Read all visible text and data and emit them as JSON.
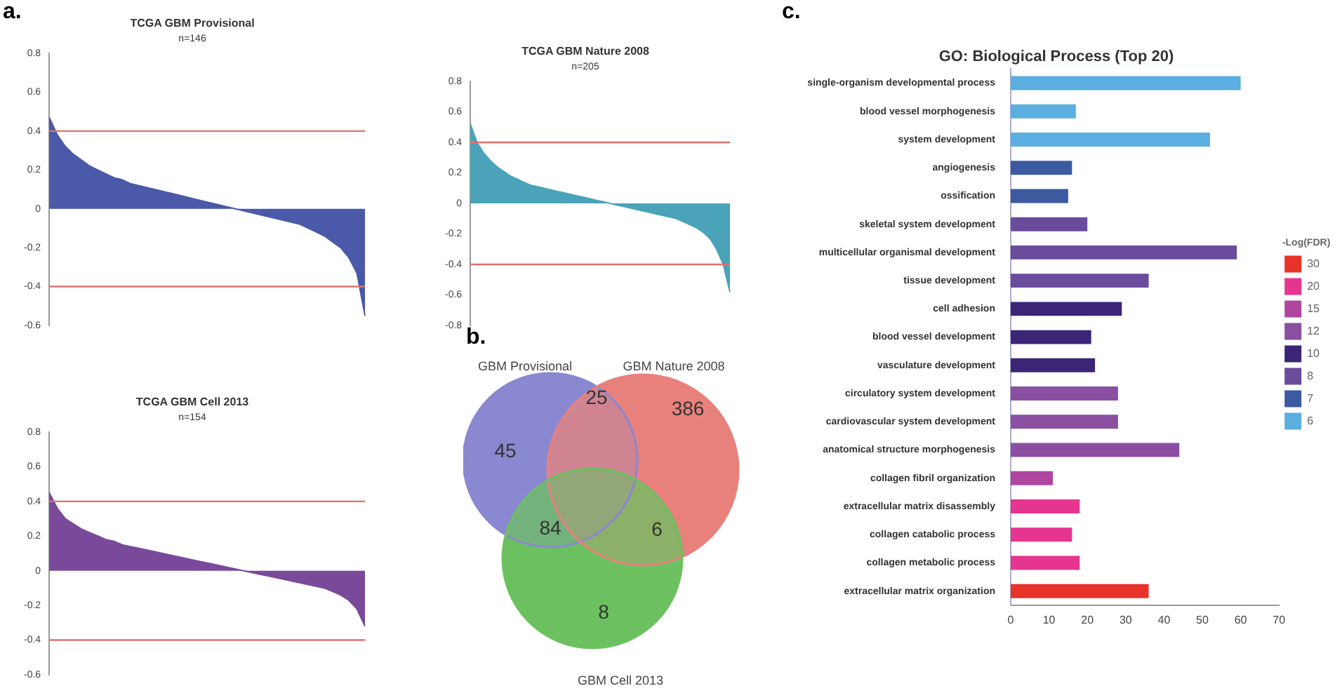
{
  "chart_data": [
    {
      "type": "area",
      "title": "TCGA GBM Provisional",
      "subtitle": "n=146",
      "annotations": [
        "a."
      ],
      "color": "#4a5aa8",
      "categories": [
        null,
        null,
        null,
        null,
        null,
        null,
        null,
        null,
        null,
        null,
        null,
        null,
        null,
        null,
        null,
        null,
        null,
        null,
        null,
        null,
        null,
        null,
        null,
        null,
        null,
        null,
        null,
        null,
        null,
        null,
        null,
        null,
        null,
        null,
        null,
        null,
        null,
        null,
        null,
        null
      ],
      "values": [
        0.47,
        0.38,
        0.32,
        0.28,
        0.25,
        0.22,
        0.2,
        0.18,
        0.16,
        0.15,
        0.13,
        0.12,
        0.11,
        0.1,
        0.09,
        0.08,
        0.07,
        0.06,
        0.05,
        0.04,
        0.03,
        0.02,
        0.01,
        0,
        -0.01,
        -0.02,
        -0.03,
        -0.04,
        -0.05,
        -0.06,
        -0.07,
        -0.08,
        -0.1,
        -0.12,
        -0.14,
        -0.17,
        -0.2,
        -0.25,
        -0.33,
        -0.55
      ],
      "ylim": [
        -0.6,
        0.8
      ],
      "yticks": [
        -0.6,
        -0.4,
        -0.2,
        0,
        0.2,
        0.4,
        0.6,
        0.8
      ],
      "tick_labels": "y",
      "ref_lines": [
        {
          "axis": "y",
          "value": 0.4,
          "color": "#e07070"
        },
        {
          "axis": "y",
          "value": -0.4,
          "color": "#e07070"
        }
      ]
    },
    {
      "type": "area",
      "title": "TCGA GBM Nature 2008",
      "subtitle": "n=205",
      "color": "#4aa3b8",
      "categories": [
        null,
        null,
        null,
        null,
        null,
        null,
        null,
        null,
        null,
        null,
        null,
        null,
        null,
        null,
        null,
        null,
        null,
        null,
        null,
        null,
        null,
        null,
        null,
        null,
        null,
        null,
        null,
        null,
        null,
        null,
        null,
        null,
        null,
        null,
        null,
        null,
        null,
        null,
        null,
        null
      ],
      "values": [
        0.52,
        0.4,
        0.33,
        0.28,
        0.24,
        0.21,
        0.18,
        0.16,
        0.14,
        0.12,
        0.11,
        0.1,
        0.09,
        0.08,
        0.07,
        0.06,
        0.05,
        0.04,
        0.03,
        0.02,
        0.01,
        0,
        -0.01,
        -0.02,
        -0.03,
        -0.04,
        -0.05,
        -0.06,
        -0.07,
        -0.08,
        -0.09,
        -0.1,
        -0.12,
        -0.14,
        -0.16,
        -0.19,
        -0.23,
        -0.3,
        -0.4,
        -0.58
      ],
      "ylim": [
        -0.8,
        0.8
      ],
      "yticks": [
        -0.8,
        -0.6,
        -0.4,
        -0.2,
        0,
        0.2,
        0.4,
        0.6,
        0.8
      ],
      "tick_labels": "y",
      "ref_lines": [
        {
          "axis": "y",
          "value": 0.4,
          "color": "#e07070"
        },
        {
          "axis": "y",
          "value": -0.4,
          "color": "#e07070"
        }
      ]
    },
    {
      "type": "area",
      "title": "TCGA GBM Cell 2013",
      "subtitle": "n=154",
      "color": "#7a4a9a",
      "categories": [
        null,
        null,
        null,
        null,
        null,
        null,
        null,
        null,
        null,
        null,
        null,
        null,
        null,
        null,
        null,
        null,
        null,
        null,
        null,
        null,
        null,
        null,
        null,
        null,
        null,
        null,
        null,
        null,
        null,
        null,
        null,
        null,
        null,
        null,
        null,
        null,
        null,
        null,
        null,
        null
      ],
      "values": [
        0.45,
        0.36,
        0.3,
        0.27,
        0.24,
        0.22,
        0.2,
        0.18,
        0.17,
        0.15,
        0.14,
        0.13,
        0.12,
        0.11,
        0.1,
        0.09,
        0.08,
        0.07,
        0.06,
        0.05,
        0.04,
        0.03,
        0.02,
        0.01,
        0,
        -0.01,
        -0.02,
        -0.03,
        -0.04,
        -0.05,
        -0.06,
        -0.07,
        -0.08,
        -0.09,
        -0.1,
        -0.12,
        -0.14,
        -0.17,
        -0.22,
        -0.32
      ],
      "ylim": [
        -0.6,
        0.8
      ],
      "yticks": [
        -0.6,
        -0.4,
        -0.2,
        0,
        0.2,
        0.4,
        0.6,
        0.8
      ],
      "tick_labels": "y",
      "ref_lines": [
        {
          "axis": "y",
          "value": 0.4,
          "color": "#e07070"
        },
        {
          "axis": "y",
          "value": -0.4,
          "color": "#e07070"
        }
      ]
    },
    {
      "type": "other",
      "annotations": [
        "b.",
        "45",
        "25",
        "386",
        "84",
        "6",
        "8"
      ],
      "categories": [
        "GBM Provisional",
        "GBM Nature 2008",
        "GBM Cell 2013"
      ],
      "colors": [
        "#8a88d0",
        "#e8817c",
        "#6cc060"
      ]
    },
    {
      "type": "bar",
      "orientation": "horizontal",
      "stacked": true,
      "title": "GO: Biological Process (Top 20)",
      "annotations": [
        "c."
      ],
      "legend": "right",
      "legend_title": "-Log(FDR)",
      "grid": false,
      "categories": [
        "single-organism developmental process",
        "blood vessel morphogenesis",
        "system development",
        "angiogenesis",
        "ossification",
        "skeletal system development",
        "multicellular organismal development",
        "tissue development",
        "cell adhesion",
        "blood vessel development",
        "vasculature development",
        "circulatory system development",
        "cardiovascular system development",
        "anatomical structure morphogenesis",
        "collagen fibril organization",
        "extracellular matrix disassembly",
        "collagen catabolic process",
        "collagen metabolic process",
        "extracellular matrix organization"
      ],
      "xlim": [
        0,
        70
      ],
      "xticks": [
        0,
        10,
        20,
        30,
        40,
        50,
        60,
        70
      ],
      "series": [
        {
          "name": "30",
          "color": "#e8332a",
          "values": [
            null,
            null,
            null,
            null,
            null,
            null,
            null,
            null,
            null,
            null,
            null,
            null,
            null,
            null,
            null,
            null,
            null,
            null,
            36
          ]
        },
        {
          "name": "20",
          "color": "#e6358f",
          "values": [
            null,
            null,
            null,
            null,
            null,
            null,
            null,
            null,
            null,
            null,
            null,
            null,
            null,
            null,
            null,
            18,
            16,
            18,
            null
          ]
        },
        {
          "name": "15",
          "color": "#b046a0",
          "values": [
            null,
            null,
            null,
            null,
            null,
            null,
            null,
            null,
            null,
            null,
            null,
            null,
            null,
            null,
            11,
            null,
            null,
            null,
            null
          ]
        },
        {
          "name": "12",
          "color": "#8a4fa0",
          "values": [
            null,
            null,
            null,
            null,
            null,
            null,
            null,
            null,
            null,
            null,
            null,
            28,
            28,
            44,
            null,
            null,
            null,
            null,
            null
          ]
        },
        {
          "name": "10",
          "color": "#3b2577",
          "values": [
            null,
            null,
            null,
            null,
            null,
            null,
            null,
            null,
            29,
            21,
            22,
            null,
            null,
            null,
            null,
            null,
            null,
            null,
            null
          ]
        },
        {
          "name": "8",
          "color": "#6a4c9c",
          "values": [
            null,
            null,
            null,
            null,
            null,
            20,
            59,
            36,
            null,
            null,
            null,
            null,
            null,
            null,
            null,
            null,
            null,
            null,
            null
          ]
        },
        {
          "name": "7",
          "color": "#3b5aa0",
          "values": [
            null,
            null,
            null,
            16,
            15,
            null,
            null,
            null,
            null,
            null,
            null,
            null,
            null,
            null,
            null,
            null,
            null,
            null,
            null
          ]
        },
        {
          "name": "6",
          "color": "#5aaee0",
          "values": [
            60,
            17,
            52,
            null,
            null,
            null,
            null,
            null,
            null,
            null,
            null,
            null,
            null,
            null,
            null,
            null,
            null,
            null,
            null
          ]
        }
      ]
    }
  ]
}
